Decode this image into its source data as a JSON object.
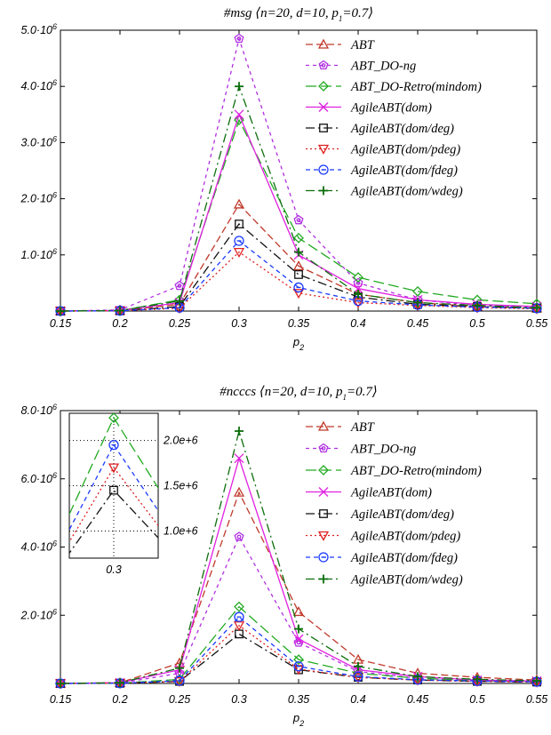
{
  "x_ticks": [
    "0.15",
    "0.2",
    "0.25",
    "0.3",
    "0.35",
    "0.4",
    "0.45",
    "0.5",
    "0.55"
  ],
  "chart_data": [
    {
      "type": "line",
      "title_prefix": "#msg ⟨n=20, d=10, p",
      "title_sub": "1",
      "title_suffix": "=0.7⟩",
      "xlabel": "p",
      "xlabel_sub": "2",
      "ylabel": "",
      "x": [
        0.15,
        0.2,
        0.25,
        0.3,
        0.35,
        0.4,
        0.45,
        0.5,
        0.55
      ],
      "xlim": [
        0.15,
        0.55
      ],
      "ylim": [
        0,
        5000000
      ],
      "y_ticks": [
        {
          "value": 1000000,
          "mant": "1.0·10",
          "exp": "6"
        },
        {
          "value": 2000000,
          "mant": "2.0·10",
          "exp": "6"
        },
        {
          "value": 3000000,
          "mant": "3.0·10",
          "exp": "6"
        },
        {
          "value": 4000000,
          "mant": "4.0·10",
          "exp": "6"
        },
        {
          "value": 5000000,
          "mant": "5.0·10",
          "exp": "6"
        }
      ],
      "legend_position": "top-right",
      "series": [
        {
          "name": "ABT",
          "color": "#c0392b",
          "dash": "8,4",
          "marker": "triangle-up",
          "values": [
            0,
            8000,
            120000,
            1900000,
            800000,
            300000,
            150000,
            80000,
            50000
          ]
        },
        {
          "name": "ABT_DO-ng",
          "color": "#b030e0",
          "dash": "4,4",
          "marker": "pentagon",
          "values": [
            0,
            20000,
            450000,
            4850000,
            1620000,
            500000,
            200000,
            100000,
            60000
          ]
        },
        {
          "name": "ABT_DO-Retro(mindom)",
          "color": "#22aa22",
          "dash": "12,5",
          "marker": "diamond",
          "values": [
            0,
            10000,
            200000,
            3400000,
            1300000,
            600000,
            350000,
            200000,
            130000
          ]
        },
        {
          "name": "AgileABT(dom)",
          "color": "#e020e0",
          "dash": "",
          "marker": "x",
          "values": [
            0,
            10000,
            150000,
            3500000,
            1000000,
            400000,
            200000,
            120000,
            80000
          ]
        },
        {
          "name": "AgileABT(dom/deg)",
          "color": "#111111",
          "dash": "10,4,2,4",
          "marker": "square",
          "values": [
            0,
            5000,
            80000,
            1550000,
            650000,
            250000,
            120000,
            80000,
            50000
          ]
        },
        {
          "name": "AgileABT(dom/pdeg)",
          "color": "#e02020",
          "dash": "2,3",
          "marker": "triangle-down",
          "values": [
            0,
            5000,
            50000,
            1050000,
            320000,
            150000,
            100000,
            60000,
            40000
          ]
        },
        {
          "name": "AgileABT(dom/fdeg)",
          "color": "#1a3aff",
          "dash": "5,4",
          "marker": "circle",
          "values": [
            0,
            5000,
            60000,
            1250000,
            420000,
            180000,
            110000,
            70000,
            50000
          ]
        },
        {
          "name": "AgileABT(dom/wdeg)",
          "color": "#0b6e0b",
          "dash": "10,4,2,4",
          "marker": "plus",
          "values": [
            0,
            10000,
            180000,
            4000000,
            1050000,
            300000,
            150000,
            100000,
            60000
          ]
        }
      ]
    },
    {
      "type": "line",
      "title_prefix": "#ncccs ⟨n=20, d=10, p",
      "title_sub": "1",
      "title_suffix": "=0.7⟩",
      "xlabel": "p",
      "xlabel_sub": "2",
      "ylabel": "",
      "x": [
        0.15,
        0.2,
        0.25,
        0.3,
        0.35,
        0.4,
        0.45,
        0.5,
        0.55
      ],
      "xlim": [
        0.15,
        0.55
      ],
      "ylim": [
        0,
        8000000
      ],
      "y_ticks": [
        {
          "value": 2000000,
          "mant": "2.0·10",
          "exp": "6"
        },
        {
          "value": 4000000,
          "mant": "4.0·10",
          "exp": "6"
        },
        {
          "value": 6000000,
          "mant": "6.0·10",
          "exp": "6"
        },
        {
          "value": 8000000,
          "mant": "8.0·10",
          "exp": "6"
        }
      ],
      "legend_position": "top-right",
      "inset": {
        "x_tick": "0.3",
        "ylim": [
          700000,
          2300000
        ],
        "y_ticks": [
          {
            "value": 1000000,
            "label": "1.0e+6"
          },
          {
            "value": 1500000,
            "label": "1.5e+6"
          },
          {
            "value": 2000000,
            "label": "2.0e+6"
          }
        ]
      },
      "series": [
        {
          "name": "ABT",
          "color": "#c0392b",
          "dash": "8,4",
          "marker": "triangle-up",
          "values": [
            0,
            20000,
            600000,
            5600000,
            2100000,
            700000,
            300000,
            180000,
            100000
          ]
        },
        {
          "name": "ABT_DO-ng",
          "color": "#b030e0",
          "dash": "4,4",
          "marker": "pentagon",
          "values": [
            0,
            10000,
            300000,
            4300000,
            1200000,
            350000,
            150000,
            80000,
            50000
          ]
        },
        {
          "name": "ABT_DO-Retro(mindom)",
          "color": "#22aa22",
          "dash": "12,5",
          "marker": "diamond",
          "values": [
            0,
            8000,
            120000,
            2250000,
            700000,
            300000,
            150000,
            90000,
            60000
          ]
        },
        {
          "name": "AgileABT(dom)",
          "color": "#e020e0",
          "dash": "",
          "marker": "x",
          "values": [
            0,
            20000,
            400000,
            6600000,
            1300000,
            400000,
            200000,
            100000,
            70000
          ]
        },
        {
          "name": "AgileABT(dom/deg)",
          "color": "#111111",
          "dash": "10,4,2,4",
          "marker": "square",
          "values": [
            0,
            5000,
            60000,
            1450000,
            400000,
            180000,
            100000,
            60000,
            40000
          ]
        },
        {
          "name": "AgileABT(dom/pdeg)",
          "color": "#e02020",
          "dash": "2,3",
          "marker": "triangle-down",
          "values": [
            0,
            5000,
            60000,
            1700000,
            420000,
            180000,
            100000,
            60000,
            40000
          ]
        },
        {
          "name": "AgileABT(dom/fdeg)",
          "color": "#1a3aff",
          "dash": "5,4",
          "marker": "circle",
          "values": [
            0,
            6000,
            80000,
            1950000,
            500000,
            200000,
            110000,
            70000,
            50000
          ]
        },
        {
          "name": "AgileABT(dom/wdeg)",
          "color": "#0b6e0b",
          "dash": "10,4,2,4",
          "marker": "plus",
          "values": [
            0,
            20000,
            450000,
            7400000,
            1600000,
            500000,
            200000,
            120000,
            80000
          ]
        }
      ]
    }
  ]
}
